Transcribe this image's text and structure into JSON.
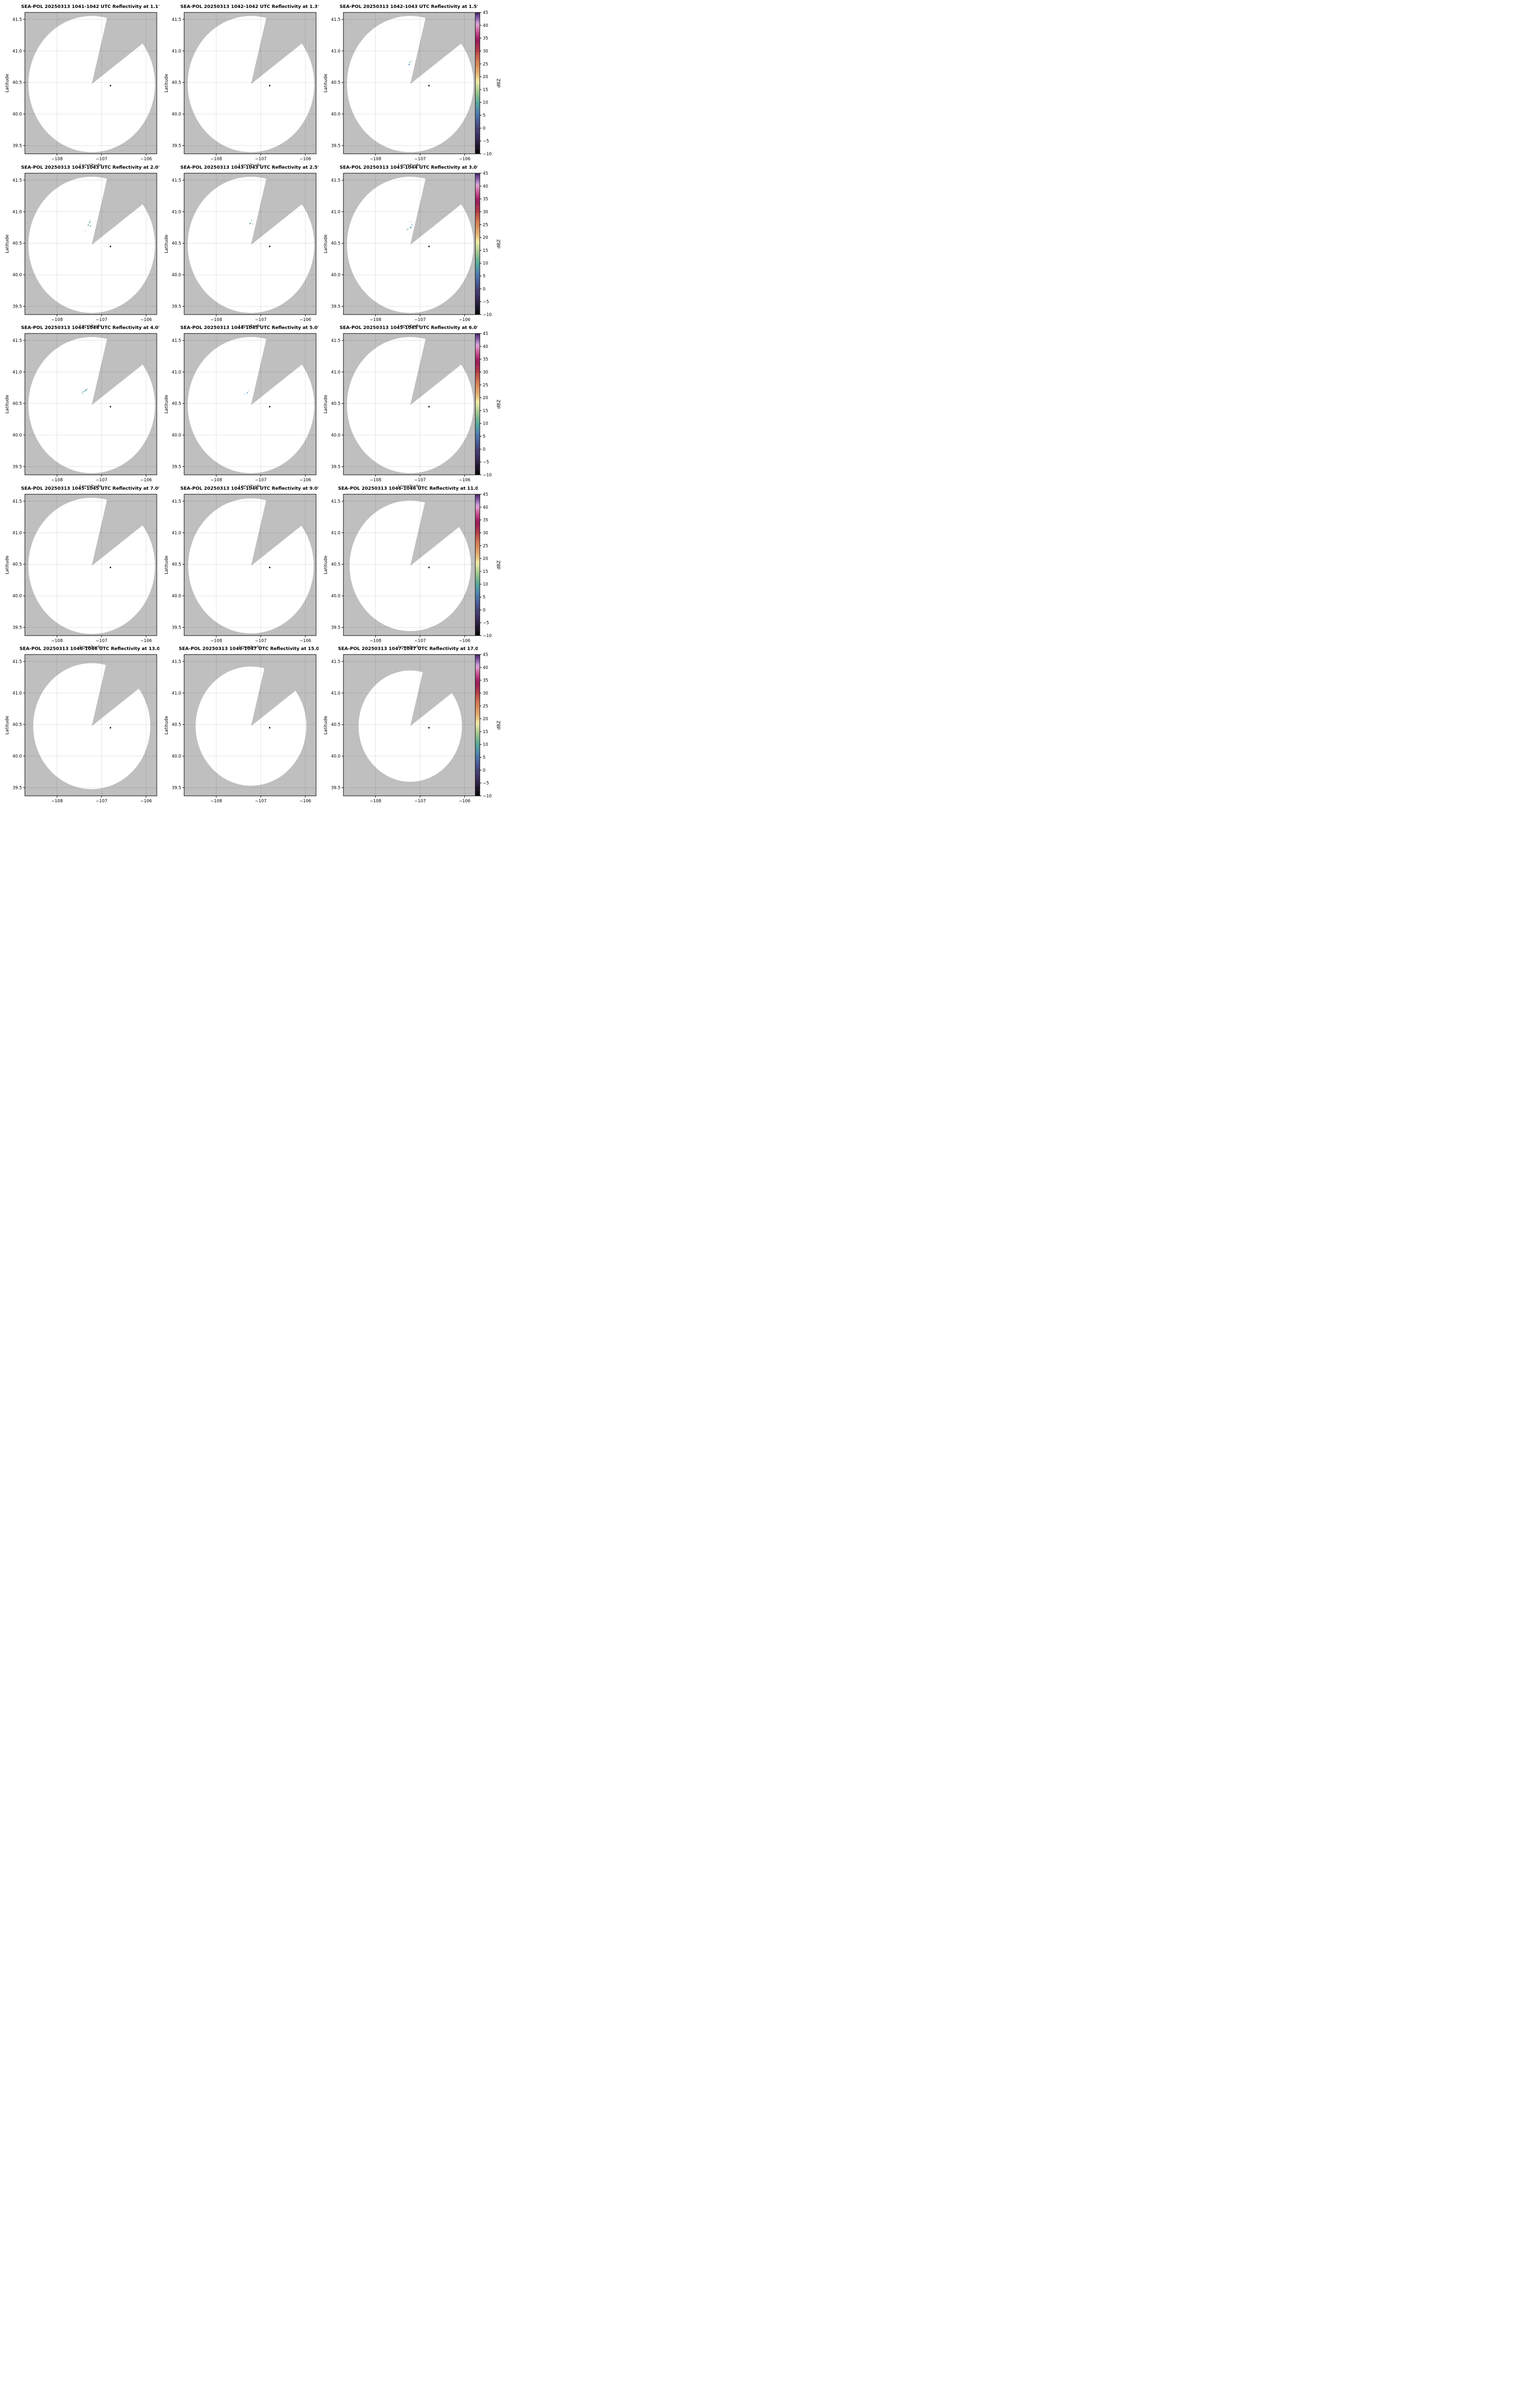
{
  "chart_data": {
    "type": "radar-ppi-grid",
    "description": "SEA-POL radar reflectivity PPI scans, 3x5 grid of elevation angles",
    "grid": {
      "rows": 5,
      "cols": 3
    },
    "axes": {
      "xlabel": "Longitude",
      "ylabel": "Latitude",
      "xlim": [
        -108.72,
        -105.76
      ],
      "ylim": [
        39.37,
        41.61
      ],
      "xticks": [
        -108,
        -107,
        -106
      ],
      "xtick_labels": [
        "−108",
        "−107",
        "−106"
      ],
      "yticks": [
        39.5,
        40.0,
        40.5,
        41.0,
        41.5
      ],
      "ytick_labels": [
        "39.5",
        "40.0",
        "40.5",
        "41.0",
        "41.5"
      ],
      "grid": true
    },
    "radar": {
      "center_lon": -107.22,
      "center_lat": 40.475,
      "marker_lon": -106.8,
      "marker_lat": 40.45,
      "blocked_sector_azimuth_deg": [
        14,
        53.5
      ]
    },
    "colorbar": {
      "label": "dBZ",
      "vmin": -10,
      "vmax": 45,
      "tick_values": [
        -10,
        -5,
        0,
        5,
        10,
        15,
        20,
        25,
        30,
        35,
        40,
        45
      ],
      "tick_labels": [
        "−10",
        "−5",
        "0",
        "5",
        "10",
        "15",
        "20",
        "25",
        "30",
        "35",
        "40",
        "45"
      ],
      "stops": [
        [
          -10,
          "#050507"
        ],
        [
          -8,
          "#140f1e"
        ],
        [
          -6,
          "#241a36"
        ],
        [
          -4,
          "#332852"
        ],
        [
          -2,
          "#3e3566"
        ],
        [
          0,
          "#454272"
        ],
        [
          2,
          "#475492"
        ],
        [
          4,
          "#4a69a0"
        ],
        [
          6,
          "#4d7fae"
        ],
        [
          8,
          "#5195a8"
        ],
        [
          10,
          "#58a89b"
        ],
        [
          12,
          "#79b78d"
        ],
        [
          14,
          "#9fc690"
        ],
        [
          16,
          "#c8d99b"
        ],
        [
          18,
          "#eeeaa9"
        ],
        [
          19,
          "#f0e09a"
        ],
        [
          20,
          "#ecc884"
        ],
        [
          22,
          "#e4a96c"
        ],
        [
          24,
          "#dd925d"
        ],
        [
          26,
          "#d57b53"
        ],
        [
          28,
          "#c55f4b"
        ],
        [
          30,
          "#b23f47"
        ],
        [
          32,
          "#a42953"
        ],
        [
          34,
          "#9c1c5c"
        ],
        [
          35,
          "#a52065"
        ],
        [
          36,
          "#b63579"
        ],
        [
          38,
          "#cc5f9d"
        ],
        [
          39,
          "#d87fb5"
        ],
        [
          40,
          "#dfa3d2"
        ],
        [
          41,
          "#c99bd3"
        ],
        [
          42,
          "#a277bd"
        ],
        [
          43,
          "#8257a4"
        ],
        [
          44,
          "#613a86"
        ],
        [
          45,
          "#3b2058"
        ]
      ]
    },
    "echo_colors": {
      "teal": "#3a98a0",
      "teal2": "#2f8f96",
      "green": "#5aa876",
      "blue": "#4781bd"
    },
    "panels": [
      {
        "title": "SEA-POL 20250313 1041-1042 UTC Reflectivity at 1.1°",
        "elevation_deg": 1.1,
        "time_utc": "1041-1042",
        "radius_km": 120,
        "echoes": []
      },
      {
        "title": "SEA-POL 20250313 1042-1042 UTC Reflectivity at 1.3°",
        "elevation_deg": 1.3,
        "time_utc": "1042-1042",
        "radius_km": 120,
        "echoes": []
      },
      {
        "title": "SEA-POL 20250313 1042-1043 UTC Reflectivity at 1.5°",
        "elevation_deg": 1.5,
        "time_utc": "1042-1043",
        "radius_km": 120,
        "echoes": [
          [
            -107.19,
            40.845,
            "green",
            1.2
          ],
          [
            -107.225,
            40.82,
            "teal",
            1.8
          ],
          [
            -107.245,
            40.785,
            "blue",
            2.2
          ]
        ]
      },
      {
        "title": "SEA-POL 20250313 1043-1043 UTC Reflectivity at 2.0°",
        "elevation_deg": 2.0,
        "time_utc": "1043-1043",
        "radius_km": 120,
        "echoes": [
          [
            -107.25,
            40.85,
            "teal",
            1.8
          ],
          [
            -107.272,
            40.827,
            "teal2",
            2.0
          ],
          [
            -107.298,
            40.787,
            "teal",
            2.2
          ],
          [
            -107.247,
            40.773,
            "teal",
            2.0
          ],
          [
            -107.37,
            40.698,
            "teal",
            1.1
          ]
        ]
      },
      {
        "title": "SEA-POL 20250313 1043-1043 UTC Reflectivity at 2.5°",
        "elevation_deg": 2.5,
        "time_utc": "1043-1043",
        "radius_km": 120,
        "echoes": [
          [
            -107.2,
            40.86,
            "teal",
            1.5
          ],
          [
            -107.23,
            40.82,
            "teal",
            1.8
          ],
          [
            -107.245,
            40.81,
            "teal2",
            1.8
          ],
          [
            -107.18,
            40.805,
            "green",
            1.5
          ]
        ]
      },
      {
        "title": "SEA-POL 20250313 1043-1044 UTC Reflectivity at 3.0°",
        "elevation_deg": 3.0,
        "time_utc": "1043-1044",
        "radius_km": 120,
        "echoes": [
          [
            -107.21,
            40.84,
            "blue",
            1.2
          ],
          [
            -107.18,
            40.79,
            "blue",
            1.6
          ],
          [
            -107.21,
            40.75,
            "teal",
            2.6
          ],
          [
            -107.27,
            40.73,
            "green",
            1.4
          ],
          [
            -107.29,
            40.72,
            "green",
            1.6
          ]
        ]
      },
      {
        "title": "SEA-POL 20250313 1044-1044 UTC Reflectivity at 4.0°",
        "elevation_deg": 4.0,
        "time_utc": "1044-1044",
        "radius_km": 120,
        "echoes": [
          [
            -107.33,
            40.725,
            "green",
            1.8
          ],
          [
            -107.345,
            40.715,
            "blue",
            2.0
          ],
          [
            -107.37,
            40.7,
            "teal",
            2.0
          ],
          [
            -107.4,
            40.69,
            "teal2",
            1.4
          ],
          [
            -107.43,
            40.68,
            "teal",
            1.8
          ],
          [
            -107.41,
            40.65,
            "blue",
            1.2
          ]
        ]
      },
      {
        "title": "SEA-POL 20250313 1044-1045 UTC Reflectivity at 5.0°",
        "elevation_deg": 5.0,
        "time_utc": "1044-1045",
        "radius_km": 120,
        "echoes": [
          [
            -107.28,
            40.7,
            "green",
            1.2
          ],
          [
            -107.3,
            40.67,
            "blue",
            1.8
          ],
          [
            -107.35,
            40.65,
            "blue",
            1.2
          ]
        ]
      },
      {
        "title": "SEA-POL 20250313 1045-1045 UTC Reflectivity at 6.0°",
        "elevation_deg": 6.0,
        "time_utc": "1045-1045",
        "radius_km": 120,
        "echoes": []
      },
      {
        "title": "SEA-POL 20250313 1045-1045 UTC Reflectivity at 7.0°",
        "elevation_deg": 7.0,
        "time_utc": "1045-1045",
        "radius_km": 120,
        "echoes": []
      },
      {
        "title": "SEA-POL 20250313 1045-1046 UTC Reflectivity at 9.0°",
        "elevation_deg": 9.0,
        "time_utc": "1045-1046",
        "radius_km": 119,
        "echoes": []
      },
      {
        "title": "SEA-POL 20250313 1046-1046 UTC Reflectivity at 11.0°",
        "elevation_deg": 11.0,
        "time_utc": "1046-1046",
        "radius_km": 115,
        "echoes": []
      },
      {
        "title": "SEA-POL 20250313 1046-1046 UTC Reflectivity at 13.0°",
        "elevation_deg": 13.0,
        "time_utc": "1046-1046",
        "radius_km": 111,
        "echoes": []
      },
      {
        "title": "SEA-POL 20250313 1046-1047 UTC Reflectivity at 15.0°",
        "elevation_deg": 15.0,
        "time_utc": "1046-1047",
        "radius_km": 105,
        "echoes": []
      },
      {
        "title": "SEA-POL 20250313 1047-1047 UTC Reflectivity at 17.0°",
        "elevation_deg": 17.0,
        "time_utc": "1047-1047",
        "radius_km": 98,
        "echoes": []
      }
    ]
  },
  "colors": {
    "panel_bg": "#bfbfbf",
    "scan_fill": "#ffffff",
    "frame": "#000000",
    "grid": "rgba(0,0,0,0.14)",
    "marker": "#0a0a0a"
  }
}
